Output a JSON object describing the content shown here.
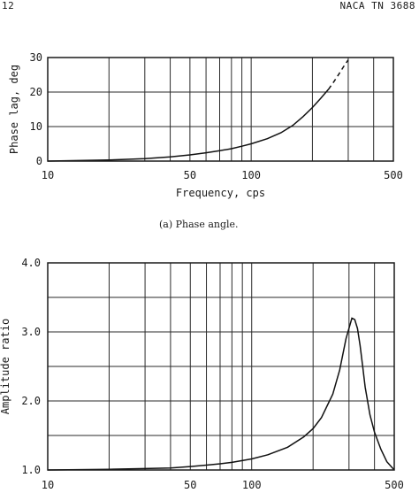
{
  "header": {
    "page_number": "12",
    "report_id": "NACA TN 3688"
  },
  "caption": "(a) Phase angle.",
  "chart_data": [
    {
      "type": "line",
      "xscale": "log",
      "xlim": [
        10,
        500
      ],
      "ylim": [
        0,
        30
      ],
      "xlabel": "Frequency, cps",
      "ylabel": "Phase lag, deg",
      "x_tick_labels": [
        "10",
        "50",
        "100",
        "500"
      ],
      "x_tick_values": [
        10,
        50,
        100,
        500
      ],
      "y_tick_labels": [
        "0",
        "10",
        "20",
        "30"
      ],
      "y_tick_values": [
        0,
        10,
        20,
        30
      ],
      "grid": true,
      "series": [
        {
          "style": "solid",
          "x": [
            10,
            20,
            30,
            40,
            50,
            60,
            70,
            80,
            90,
            100,
            120,
            140,
            160,
            180,
            200,
            220,
            240
          ],
          "y": [
            0.0,
            0.3,
            0.7,
            1.2,
            1.8,
            2.4,
            3.0,
            3.6,
            4.3,
            5.0,
            6.5,
            8.2,
            10.3,
            12.9,
            15.5,
            18.2,
            20.8
          ]
        },
        {
          "style": "dashed",
          "x": [
            240,
            255,
            270,
            285,
            300
          ],
          "y": [
            20.8,
            23.0,
            25.2,
            27.4,
            29.3
          ]
        }
      ]
    },
    {
      "type": "line",
      "xscale": "log",
      "xlim": [
        10,
        500
      ],
      "ylim": [
        1.0,
        4.0
      ],
      "xlabel": "",
      "ylabel": "Amplitude ratio",
      "x_tick_labels": [
        "10",
        "50",
        "100",
        "500"
      ],
      "x_tick_values": [
        10,
        50,
        100,
        500
      ],
      "y_tick_labels": [
        "1.0",
        "2.0",
        "3.0",
        "4.0"
      ],
      "y_tick_values": [
        1.0,
        2.0,
        3.0,
        4.0
      ],
      "grid": true,
      "series": [
        {
          "style": "solid",
          "x": [
            10,
            20,
            30,
            40,
            50,
            60,
            70,
            80,
            100,
            120,
            150,
            180,
            200,
            220,
            250,
            270,
            290,
            310,
            320,
            330,
            340,
            350,
            360,
            380,
            400,
            430,
            460,
            500
          ],
          "y": [
            1.0,
            1.01,
            1.02,
            1.03,
            1.05,
            1.07,
            1.09,
            1.11,
            1.16,
            1.22,
            1.33,
            1.48,
            1.6,
            1.76,
            2.1,
            2.45,
            2.9,
            3.2,
            3.18,
            3.05,
            2.8,
            2.5,
            2.2,
            1.8,
            1.55,
            1.3,
            1.12,
            1.0
          ]
        }
      ]
    }
  ]
}
